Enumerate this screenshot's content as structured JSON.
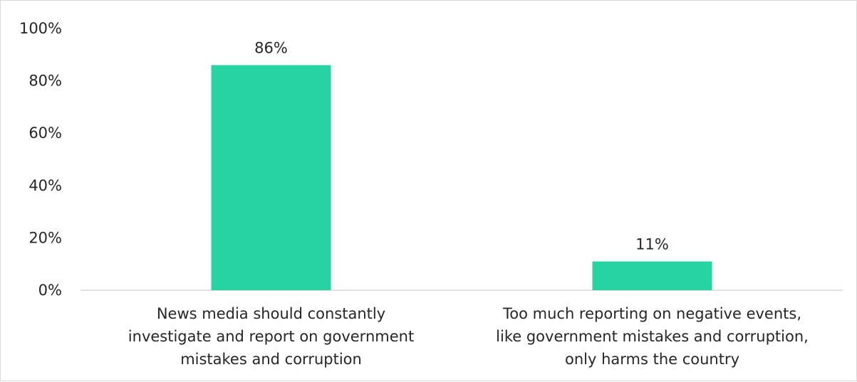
{
  "chart_data": {
    "type": "bar",
    "title": "",
    "xlabel": "",
    "ylabel": "",
    "categories": [
      [
        "News media should constantly",
        "investigate and report on government",
        "mistakes and corruption"
      ],
      [
        "Too much reporting on negative events,",
        "like government mistakes and corruption,",
        "only harms the country"
      ]
    ],
    "values": [
      86,
      11
    ],
    "data_labels": [
      "86%",
      "11%"
    ],
    "ylim": [
      0,
      100
    ],
    "yticks": [
      0,
      20,
      40,
      60,
      80,
      100
    ],
    "ytick_labels": [
      "0%",
      "20%",
      "40%",
      "60%",
      "80%",
      "100%"
    ],
    "grid": false,
    "legend": "none",
    "bar_color": "#26d3a3",
    "axis_color": "#d9d9d9",
    "text_color": "#262626"
  }
}
